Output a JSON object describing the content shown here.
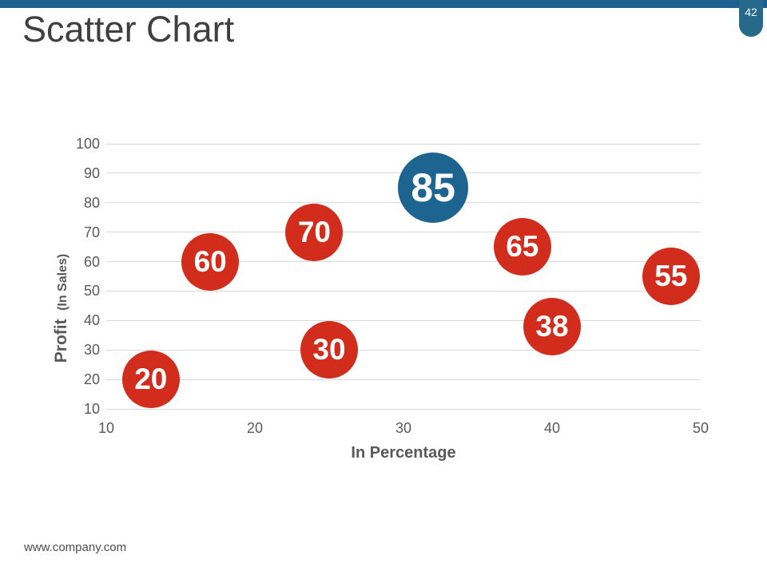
{
  "page": {
    "slide_number": "42",
    "title": "Scatter Chart",
    "footer_url": "www.company.com"
  },
  "colors": {
    "top_bar": "#1F618E",
    "badge_background": "#27698A",
    "badge_text": "#FFFFFF",
    "title_text": "#3F3F3F",
    "axis_text": "#595959",
    "gridline": "#D9D9D9",
    "bubble_label_text": "#FFFFFF",
    "footer_text": "#4C4C4C"
  },
  "chart_data": {
    "type": "scatter",
    "title": "",
    "xlabel": "In Percentage",
    "ylabel": "Profit (In Sales)",
    "ylabel_primary": "Profit",
    "ylabel_secondary": "(In Sales)",
    "xlim": [
      10,
      50
    ],
    "ylim": [
      10,
      100
    ],
    "x_ticks": [
      10,
      20,
      30,
      40,
      50
    ],
    "y_ticks": [
      10,
      20,
      30,
      40,
      50,
      60,
      70,
      80,
      90,
      100
    ],
    "grid": "horizontal",
    "legend_position": "none",
    "series": [
      {
        "name": "main",
        "color": "#D22D1C",
        "radius": 36,
        "font_size": 37
      },
      {
        "name": "highlight",
        "color": "#1D6491",
        "radius": 44,
        "font_size": 50
      }
    ],
    "points": [
      {
        "x": 13,
        "y": 20,
        "label": "20",
        "series": "main"
      },
      {
        "x": 17,
        "y": 60,
        "label": "60",
        "series": "main"
      },
      {
        "x": 24,
        "y": 70,
        "label": "70",
        "series": "main"
      },
      {
        "x": 25,
        "y": 30,
        "label": "30",
        "series": "main"
      },
      {
        "x": 32,
        "y": 85,
        "label": "85",
        "series": "highlight"
      },
      {
        "x": 38,
        "y": 65,
        "label": "65",
        "series": "main"
      },
      {
        "x": 40,
        "y": 38,
        "label": "38",
        "series": "main"
      },
      {
        "x": 48,
        "y": 55,
        "label": "55",
        "series": "main"
      }
    ]
  }
}
